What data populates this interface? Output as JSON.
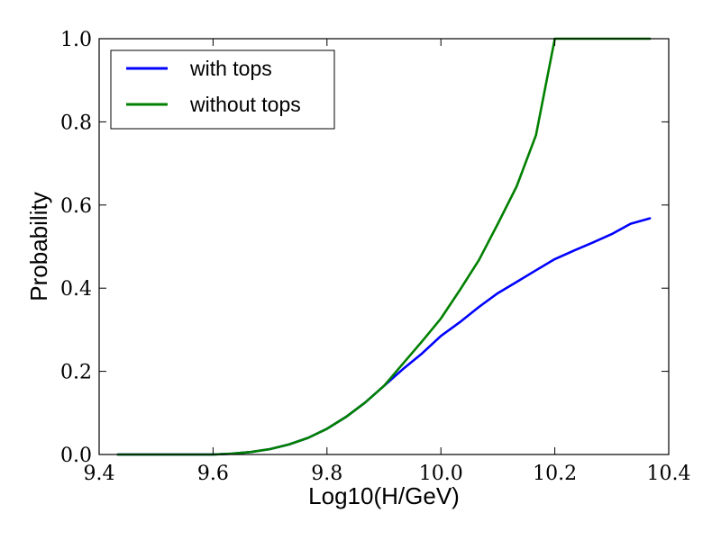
{
  "chart_data": {
    "type": "line",
    "title": "",
    "xlabel": "Log10(H/GeV)",
    "ylabel": "Probability",
    "xlim": [
      9.4,
      10.4
    ],
    "ylim": [
      0.0,
      1.0
    ],
    "xticks": [
      "9.4",
      "9.6",
      "9.8",
      "10.0",
      "10.2",
      "10.4"
    ],
    "yticks": [
      "0.0",
      "0.2",
      "0.4",
      "0.6",
      "0.8",
      "1.0"
    ],
    "grid": false,
    "legend_position": "top-left",
    "series": [
      {
        "name": "with tops",
        "color": "#0000ff",
        "x": [
          9.433,
          9.6,
          9.633,
          9.667,
          9.7,
          9.733,
          9.767,
          9.8,
          9.833,
          9.867,
          9.9,
          9.933,
          9.967,
          10.0,
          10.033,
          10.067,
          10.1,
          10.133,
          10.167,
          10.2,
          10.233,
          10.267,
          10.3,
          10.333,
          10.367
        ],
        "y": [
          0.0,
          0.0,
          0.002,
          0.006,
          0.013,
          0.024,
          0.04,
          0.062,
          0.09,
          0.125,
          0.165,
          0.205,
          0.243,
          0.285,
          0.318,
          0.355,
          0.388,
          0.415,
          0.443,
          0.47,
          0.49,
          0.51,
          0.53,
          0.555,
          0.568
        ]
      },
      {
        "name": "without tops",
        "color": "#008000",
        "x": [
          9.433,
          9.6,
          9.633,
          9.667,
          9.7,
          9.733,
          9.767,
          9.8,
          9.833,
          9.867,
          9.9,
          9.933,
          9.967,
          10.0,
          10.033,
          10.067,
          10.1,
          10.133,
          10.167,
          10.2,
          10.233,
          10.267,
          10.3,
          10.333,
          10.367
        ],
        "y": [
          0.0,
          0.0,
          0.002,
          0.006,
          0.013,
          0.024,
          0.04,
          0.062,
          0.09,
          0.125,
          0.165,
          0.218,
          0.272,
          0.327,
          0.395,
          0.468,
          0.555,
          0.645,
          0.768,
          1.0,
          1.0,
          1.0,
          1.0,
          1.0,
          1.0
        ]
      }
    ]
  }
}
